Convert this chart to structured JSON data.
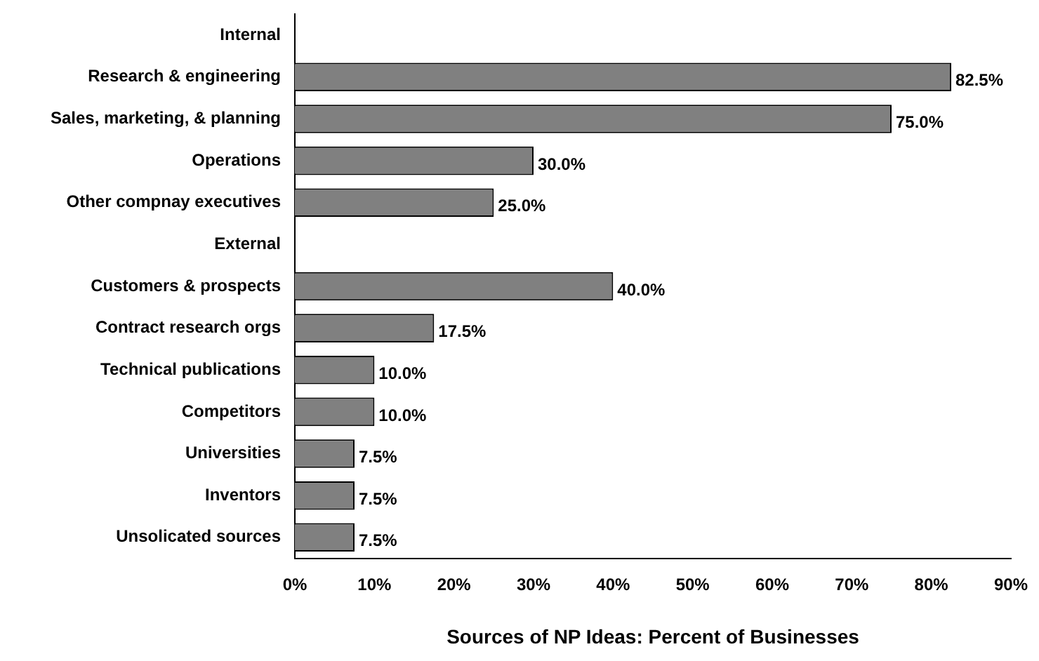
{
  "chart_data": {
    "type": "bar",
    "orientation": "horizontal",
    "xlabel": "Sources of NP Ideas: Percent of Businesses",
    "categories": [
      "Internal",
      "Research & engineering",
      "Sales, marketing, & planning",
      "Operations",
      "Other compnay executives",
      "External",
      "Customers & prospects",
      "Contract research orgs",
      "Technical publications",
      "Competitors",
      "Universities",
      "Inventors",
      "Unsolicated sources"
    ],
    "values": [
      null,
      82.5,
      75.0,
      30.0,
      25.0,
      null,
      40.0,
      17.5,
      10.0,
      10.0,
      7.5,
      7.5,
      7.5
    ],
    "value_labels": [
      null,
      "82.5%",
      "75.0%",
      "30.0%",
      "25.0%",
      null,
      "40.0%",
      "17.5%",
      "10.0%",
      "10.0%",
      "7.5%",
      "7.5%",
      "7.5%"
    ],
    "color": "#808080",
    "xlim": [
      0,
      90
    ],
    "xticks": [
      {
        "value": 0,
        "label": "0%"
      },
      {
        "value": 10,
        "label": "10%"
      },
      {
        "value": 20,
        "label": "20%"
      },
      {
        "value": 30,
        "label": "30%"
      },
      {
        "value": 40,
        "label": "40%"
      },
      {
        "value": 50,
        "label": "50%"
      },
      {
        "value": 60,
        "label": "60%"
      },
      {
        "value": 70,
        "label": "70%"
      },
      {
        "value": 80,
        "label": "80%"
      },
      {
        "value": 90,
        "label": "90%"
      }
    ],
    "grid": false,
    "legend": false
  }
}
